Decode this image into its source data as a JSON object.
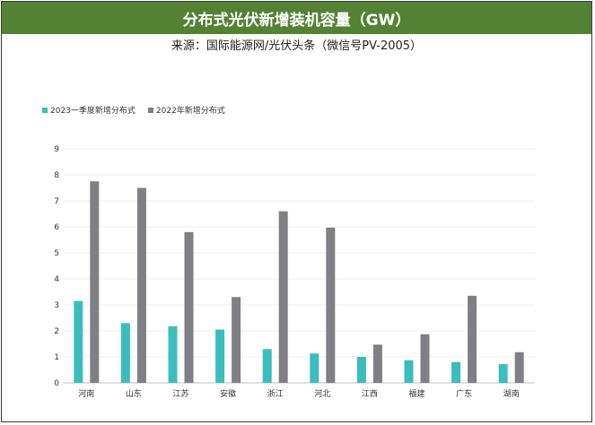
{
  "title": "分布式光伏新增装机容量（GW）",
  "subtitle": "来源：国际能源网/光伏头条（微信号PV-2005）",
  "colors": {
    "title_bg": "#548235",
    "series_a": "#3bbdbd",
    "series_b": "#7f7f85"
  },
  "chart_data": {
    "type": "bar",
    "categories": [
      "河南",
      "山东",
      "江苏",
      "安徽",
      "浙江",
      "河北",
      "江西",
      "福建",
      "广东",
      "湖南"
    ],
    "series": [
      {
        "name": "2023一季度新增分布式",
        "values": [
          3.15,
          2.3,
          2.18,
          2.05,
          1.3,
          1.13,
          1.0,
          0.87,
          0.8,
          0.72
        ]
      },
      {
        "name": "2022年新增分布式",
        "values": [
          7.75,
          7.5,
          5.8,
          3.3,
          6.6,
          5.97,
          1.47,
          1.87,
          3.35,
          1.18
        ]
      }
    ],
    "yticks": [
      "0",
      "1",
      "2",
      "3",
      "4",
      "5",
      "6",
      "7",
      "8",
      "9"
    ],
    "ylim": [
      0,
      9
    ],
    "grid": true,
    "legend": "top-left"
  }
}
